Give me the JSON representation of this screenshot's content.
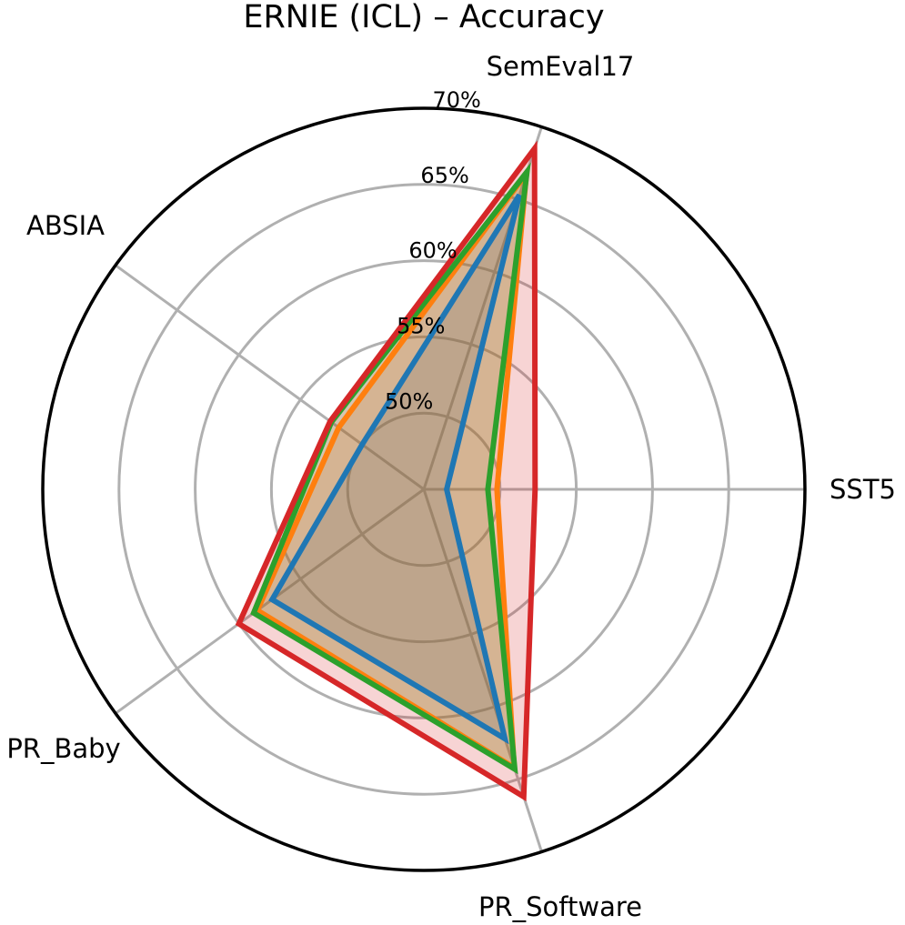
{
  "chart_data": {
    "type": "radar",
    "title": "ERNIE (ICL) – Accuracy",
    "axes": [
      "SemEval17",
      "SST5",
      "PR_Software",
      "PR_Baby",
      "ABSIA"
    ],
    "radial_ticks": [
      50,
      55,
      60,
      65,
      70
    ],
    "radial_tick_labels": [
      "50%",
      "55%",
      "60%",
      "65%",
      "70%"
    ],
    "rlim": [
      45,
      70
    ],
    "unit": "%",
    "grid": true,
    "series": [
      {
        "color": "#1f77b4",
        "values": [
          65.3,
          46.5,
          62.2,
          57.3,
          50.0
        ]
      },
      {
        "color": "#ff7f0e",
        "values": [
          66.8,
          49.8,
          64.2,
          58.5,
          51.9
        ]
      },
      {
        "color": "#2ca02c",
        "values": [
          66.9,
          49.2,
          64.3,
          58.8,
          52.5
        ]
      },
      {
        "color": "#d62728",
        "values": [
          68.5,
          52.3,
          66.2,
          60.0,
          52.6
        ]
      }
    ]
  }
}
